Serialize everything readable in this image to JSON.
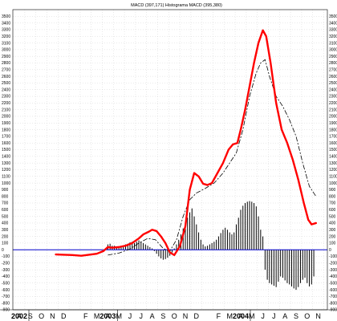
{
  "chart_data": {
    "type": "line",
    "title": "MACD (397,171) Histograma MACD (395,380)",
    "ylim": [
      -900,
      3600
    ],
    "yticks": [
      3500,
      3400,
      3300,
      3200,
      3100,
      3000,
      2900,
      2800,
      2700,
      2600,
      2500,
      2400,
      2300,
      2200,
      2100,
      2000,
      1900,
      1800,
      1700,
      1600,
      1500,
      1400,
      1300,
      1200,
      1100,
      1000,
      900,
      800,
      700,
      600,
      500,
      400,
      300,
      200,
      100,
      0,
      -100,
      -200,
      -300,
      -400,
      -500,
      -600,
      -700,
      -800,
      -900
    ],
    "grid": true,
    "x_axis": {
      "years": [
        {
          "label": "2002",
          "index": 0
        },
        {
          "label": "2003",
          "index": 8
        },
        {
          "label": "2004",
          "index": 20
        }
      ],
      "months": [
        "A",
        "S",
        "O",
        "N",
        "D",
        "",
        "F",
        "M",
        "A",
        "M",
        "J",
        "J",
        "A",
        "S",
        "O",
        "N",
        "D",
        "",
        "F",
        "M",
        "A",
        "M",
        "J",
        "J",
        "A",
        "S",
        "O",
        "N"
      ]
    },
    "x_range": [
      -1,
      28
    ],
    "colors": {
      "macd": "#ff0000",
      "signal": "#000000",
      "histogram": "#000000",
      "zero": "#0000cc"
    },
    "series": [
      {
        "kind": "line",
        "style": "solid",
        "points": [
          [
            3.3,
            -70
          ],
          [
            4.0,
            -75
          ],
          [
            4.8,
            -80
          ],
          [
            5.6,
            -90
          ],
          [
            6.3,
            -75
          ],
          [
            7.0,
            -60
          ],
          [
            7.6,
            -20
          ],
          [
            8.0,
            40
          ],
          [
            8.4,
            30
          ],
          [
            9.0,
            40
          ],
          [
            9.6,
            60
          ],
          [
            10.2,
            100
          ],
          [
            10.8,
            170
          ],
          [
            11.2,
            230
          ],
          [
            11.7,
            270
          ],
          [
            12.0,
            300
          ],
          [
            12.4,
            280
          ],
          [
            12.8,
            200
          ],
          [
            13.2,
            100
          ],
          [
            13.6,
            -40
          ],
          [
            14.0,
            -80
          ],
          [
            14.5,
            50
          ],
          [
            15.0,
            350
          ],
          [
            15.4,
            900
          ],
          [
            15.8,
            1150
          ],
          [
            16.2,
            1100
          ],
          [
            16.6,
            990
          ],
          [
            17.0,
            970
          ],
          [
            17.4,
            1000
          ],
          [
            17.8,
            1120
          ],
          [
            18.4,
            1300
          ],
          [
            18.9,
            1500
          ],
          [
            19.3,
            1580
          ],
          [
            19.7,
            1600
          ],
          [
            20.0,
            1800
          ],
          [
            20.4,
            2100
          ],
          [
            20.8,
            2450
          ],
          [
            21.2,
            2800
          ],
          [
            21.6,
            3100
          ],
          [
            22.0,
            3290
          ],
          [
            22.3,
            3200
          ],
          [
            22.7,
            2800
          ],
          [
            23.2,
            2200
          ],
          [
            23.7,
            1800
          ],
          [
            24.2,
            1600
          ],
          [
            24.7,
            1350
          ],
          [
            25.2,
            1050
          ],
          [
            25.7,
            700
          ],
          [
            26.1,
            450
          ],
          [
            26.4,
            380
          ],
          [
            26.8,
            400
          ]
        ]
      },
      {
        "kind": "line",
        "style": "dashed",
        "points": [
          [
            8.0,
            -80
          ],
          [
            9.0,
            -50
          ],
          [
            10.0,
            10
          ],
          [
            10.8,
            100
          ],
          [
            11.6,
            170
          ],
          [
            12.3,
            150
          ],
          [
            13.0,
            20
          ],
          [
            13.6,
            -20
          ],
          [
            14.2,
            150
          ],
          [
            14.8,
            500
          ],
          [
            15.4,
            750
          ],
          [
            16.0,
            850
          ],
          [
            16.8,
            920
          ],
          [
            17.6,
            1000
          ],
          [
            18.4,
            1150
          ],
          [
            19.0,
            1300
          ],
          [
            19.6,
            1450
          ],
          [
            20.2,
            1800
          ],
          [
            20.8,
            2300
          ],
          [
            21.4,
            2650
          ],
          [
            21.8,
            2800
          ],
          [
            22.2,
            2850
          ],
          [
            22.6,
            2600
          ],
          [
            23.2,
            2300
          ],
          [
            23.8,
            2150
          ],
          [
            24.4,
            1950
          ],
          [
            25.0,
            1700
          ],
          [
            25.6,
            1300
          ],
          [
            26.2,
            950
          ],
          [
            26.8,
            800
          ]
        ]
      },
      {
        "kind": "histogram",
        "points": [
          [
            8.0,
            80
          ],
          [
            8.2,
            90
          ],
          [
            8.4,
            60
          ],
          [
            8.6,
            60
          ],
          [
            8.8,
            50
          ],
          [
            9.0,
            40
          ],
          [
            9.2,
            50
          ],
          [
            9.4,
            60
          ],
          [
            9.6,
            80
          ],
          [
            9.8,
            90
          ],
          [
            10.0,
            110
          ],
          [
            10.2,
            120
          ],
          [
            10.4,
            100
          ],
          [
            10.6,
            120
          ],
          [
            10.8,
            140
          ],
          [
            11.0,
            120
          ],
          [
            11.2,
            100
          ],
          [
            11.4,
            80
          ],
          [
            11.6,
            60
          ],
          [
            11.8,
            40
          ],
          [
            12.0,
            20
          ],
          [
            12.2,
            -20
          ],
          [
            12.4,
            -60
          ],
          [
            12.6,
            -100
          ],
          [
            12.8,
            -130
          ],
          [
            13.0,
            -150
          ],
          [
            13.2,
            -140
          ],
          [
            13.4,
            -120
          ],
          [
            13.6,
            -90
          ],
          [
            13.8,
            -40
          ],
          [
            14.0,
            20
          ],
          [
            14.2,
            80
          ],
          [
            14.4,
            150
          ],
          [
            14.6,
            230
          ],
          [
            14.8,
            320
          ],
          [
            15.0,
            400
          ],
          [
            15.2,
            480
          ],
          [
            15.4,
            560
          ],
          [
            15.6,
            620
          ],
          [
            15.8,
            500
          ],
          [
            16.0,
            380
          ],
          [
            16.2,
            260
          ],
          [
            16.4,
            150
          ],
          [
            16.6,
            80
          ],
          [
            16.8,
            50
          ],
          [
            17.0,
            60
          ],
          [
            17.2,
            80
          ],
          [
            17.4,
            100
          ],
          [
            17.6,
            120
          ],
          [
            17.8,
            150
          ],
          [
            18.0,
            200
          ],
          [
            18.2,
            250
          ],
          [
            18.4,
            300
          ],
          [
            18.6,
            330
          ],
          [
            18.8,
            300
          ],
          [
            19.0,
            260
          ],
          [
            19.2,
            230
          ],
          [
            19.4,
            260
          ],
          [
            19.6,
            380
          ],
          [
            19.8,
            480
          ],
          [
            20.0,
            600
          ],
          [
            20.2,
            660
          ],
          [
            20.4,
            700
          ],
          [
            20.6,
            720
          ],
          [
            20.8,
            730
          ],
          [
            21.0,
            720
          ],
          [
            21.2,
            700
          ],
          [
            21.4,
            650
          ],
          [
            21.6,
            500
          ],
          [
            21.8,
            300
          ],
          [
            22.0,
            200
          ],
          [
            22.2,
            -300
          ],
          [
            22.4,
            -450
          ],
          [
            22.6,
            -500
          ],
          [
            22.8,
            -520
          ],
          [
            23.0,
            -540
          ],
          [
            23.2,
            -560
          ],
          [
            23.4,
            -480
          ],
          [
            23.6,
            -400
          ],
          [
            23.8,
            -420
          ],
          [
            24.0,
            -460
          ],
          [
            24.2,
            -500
          ],
          [
            24.4,
            -520
          ],
          [
            24.6,
            -550
          ],
          [
            24.8,
            -580
          ],
          [
            25.0,
            -600
          ],
          [
            25.2,
            -560
          ],
          [
            25.4,
            -500
          ],
          [
            25.6,
            -450
          ],
          [
            25.8,
            -420
          ],
          [
            26.0,
            -500
          ],
          [
            26.2,
            -550
          ],
          [
            26.4,
            -520
          ],
          [
            26.6,
            -400
          ]
        ]
      }
    ]
  }
}
